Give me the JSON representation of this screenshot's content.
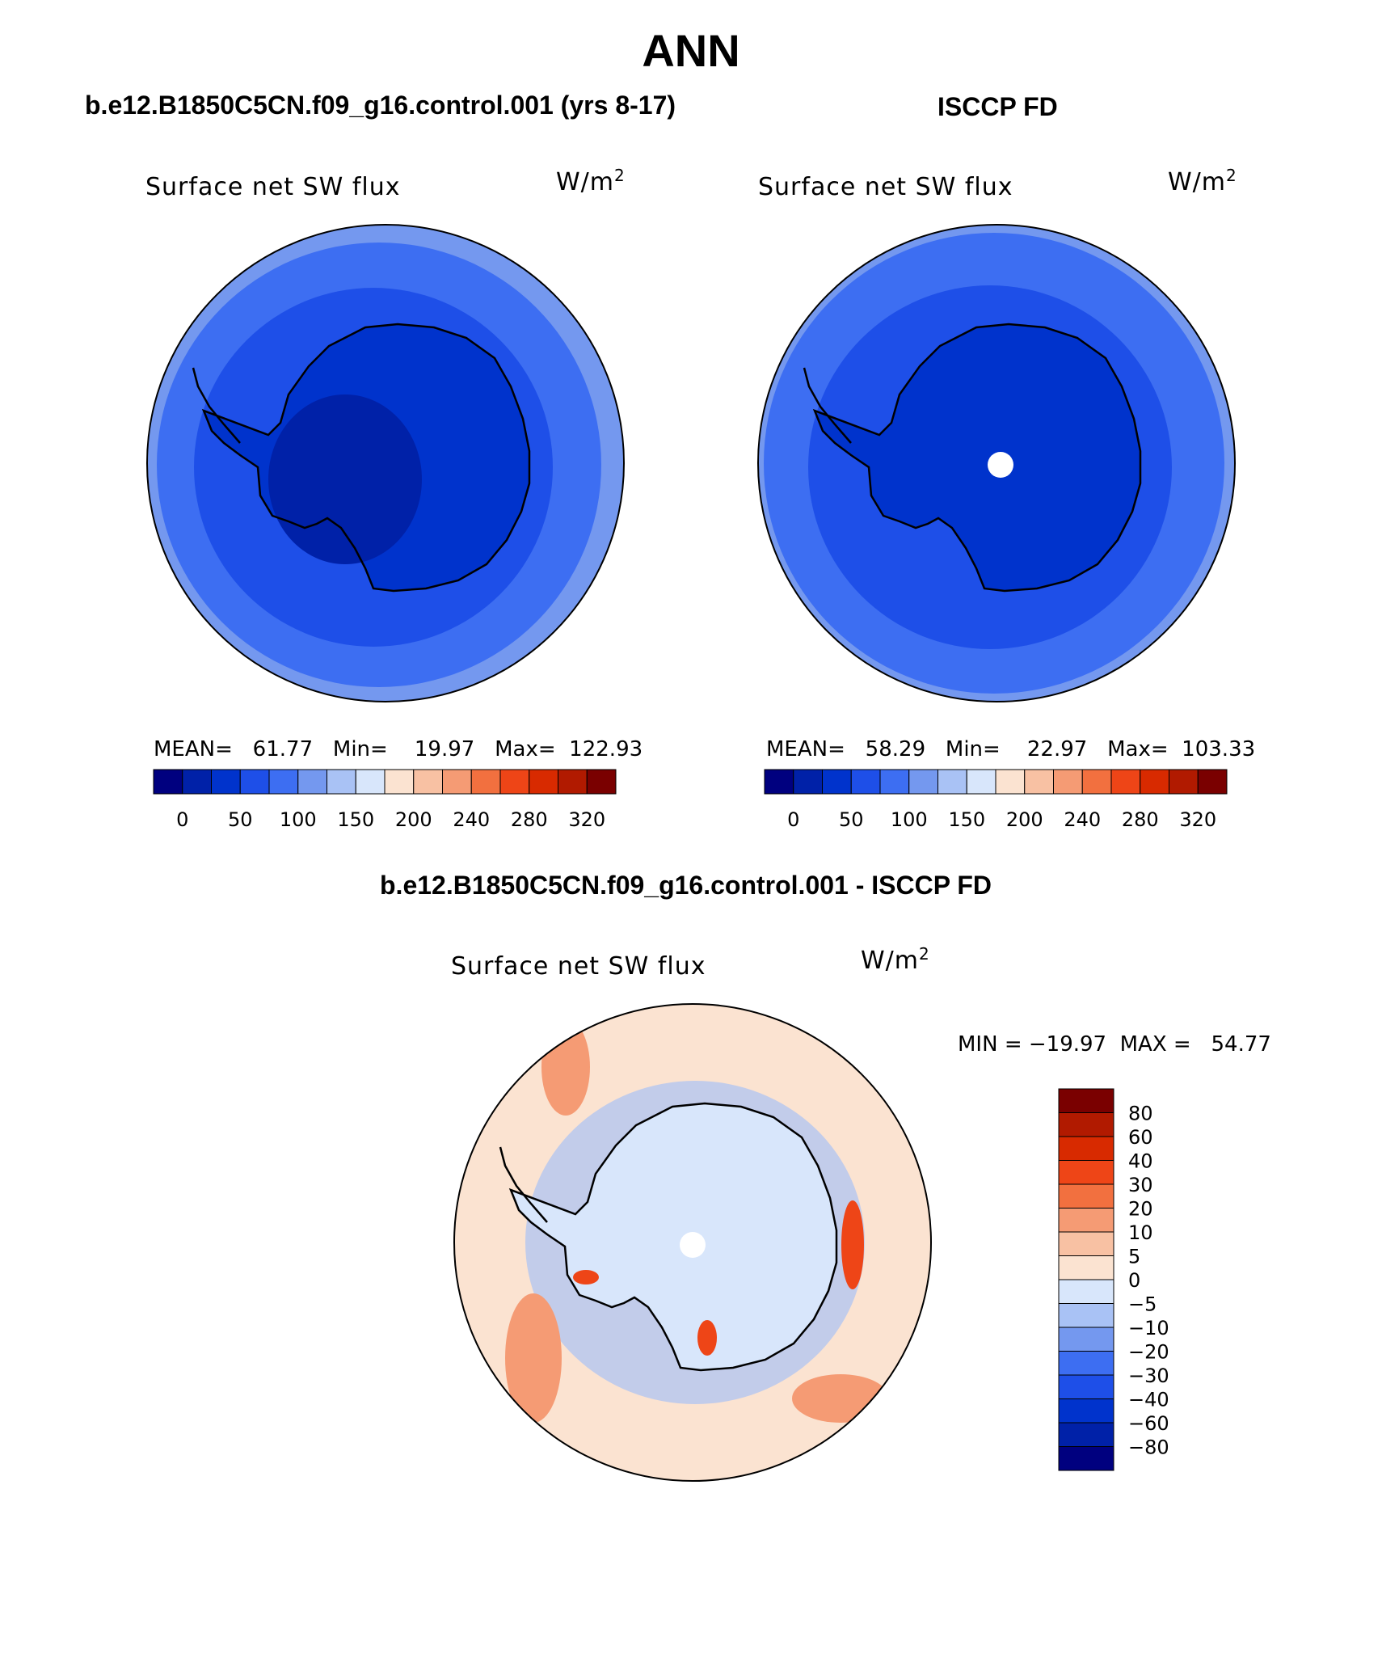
{
  "title": "ANN",
  "panels": [
    {
      "heading": "b.e12.B1850C5CN.f09_g16.control.001 (yrs 8-17)",
      "variable": "Surface net SW flux",
      "units_base": "W/m",
      "units_exp": "2",
      "stats": "MEAN=   61.77   Min=    19.97   Max=  122.93"
    },
    {
      "heading": "ISCCP FD",
      "variable": "Surface net SW flux",
      "units_base": "W/m",
      "units_exp": "2",
      "stats": "MEAN=   58.29   Min=    22.97   Max=  103.33"
    }
  ],
  "diff": {
    "heading": "b.e12.B1850C5CN.f09_g16.control.001 - ISCCP FD",
    "variable": "Surface net SW flux",
    "units_base": "W/m",
    "units_exp": "2",
    "minmax": "MIN = −19.97  MAX =   54.77"
  },
  "colorbar_abs": {
    "colors": [
      "#00007f",
      "#0021a8",
      "#0033cc",
      "#1e4fe8",
      "#3d6ef2",
      "#7498ef",
      "#a9c2f5",
      "#d8e6fb",
      "#fbe3d1",
      "#f8c1a3",
      "#f59b74",
      "#f2703f",
      "#ee4517",
      "#d82a00",
      "#b11a00",
      "#7a0000"
    ],
    "tick_labels": [
      "0",
      "50",
      "100",
      "150",
      "200",
      "240",
      "280",
      "320"
    ]
  },
  "colorbar_diff": {
    "colors": [
      "#7a0000",
      "#b11a00",
      "#d82a00",
      "#ee4517",
      "#f2703f",
      "#f59b74",
      "#f8c1a3",
      "#fbe3d1",
      "#d8e6fb",
      "#a9c2f5",
      "#7498ef",
      "#3d6ef2",
      "#1e4fe8",
      "#0033cc",
      "#0021a8",
      "#00007f"
    ],
    "tick_labels": [
      "80",
      "60",
      "40",
      "30",
      "20",
      "10",
      "5",
      "0",
      "−5",
      "−10",
      "−20",
      "−30",
      "−40",
      "−60",
      "−80"
    ]
  },
  "map_fill_colors": {
    "ocean_outer": "#7498ef",
    "ocean_mid": "#3d6ef2",
    "ocean_inner": "#1e4fe8",
    "land": "#0033cc",
    "land_interior": "#0021a8",
    "diff_land": "#d8e6fb",
    "diff_blue": "#a9c2f5",
    "diff_warm": "#fbe3d1",
    "diff_orange": "#f59b74",
    "diff_red": "#ee4517"
  }
}
